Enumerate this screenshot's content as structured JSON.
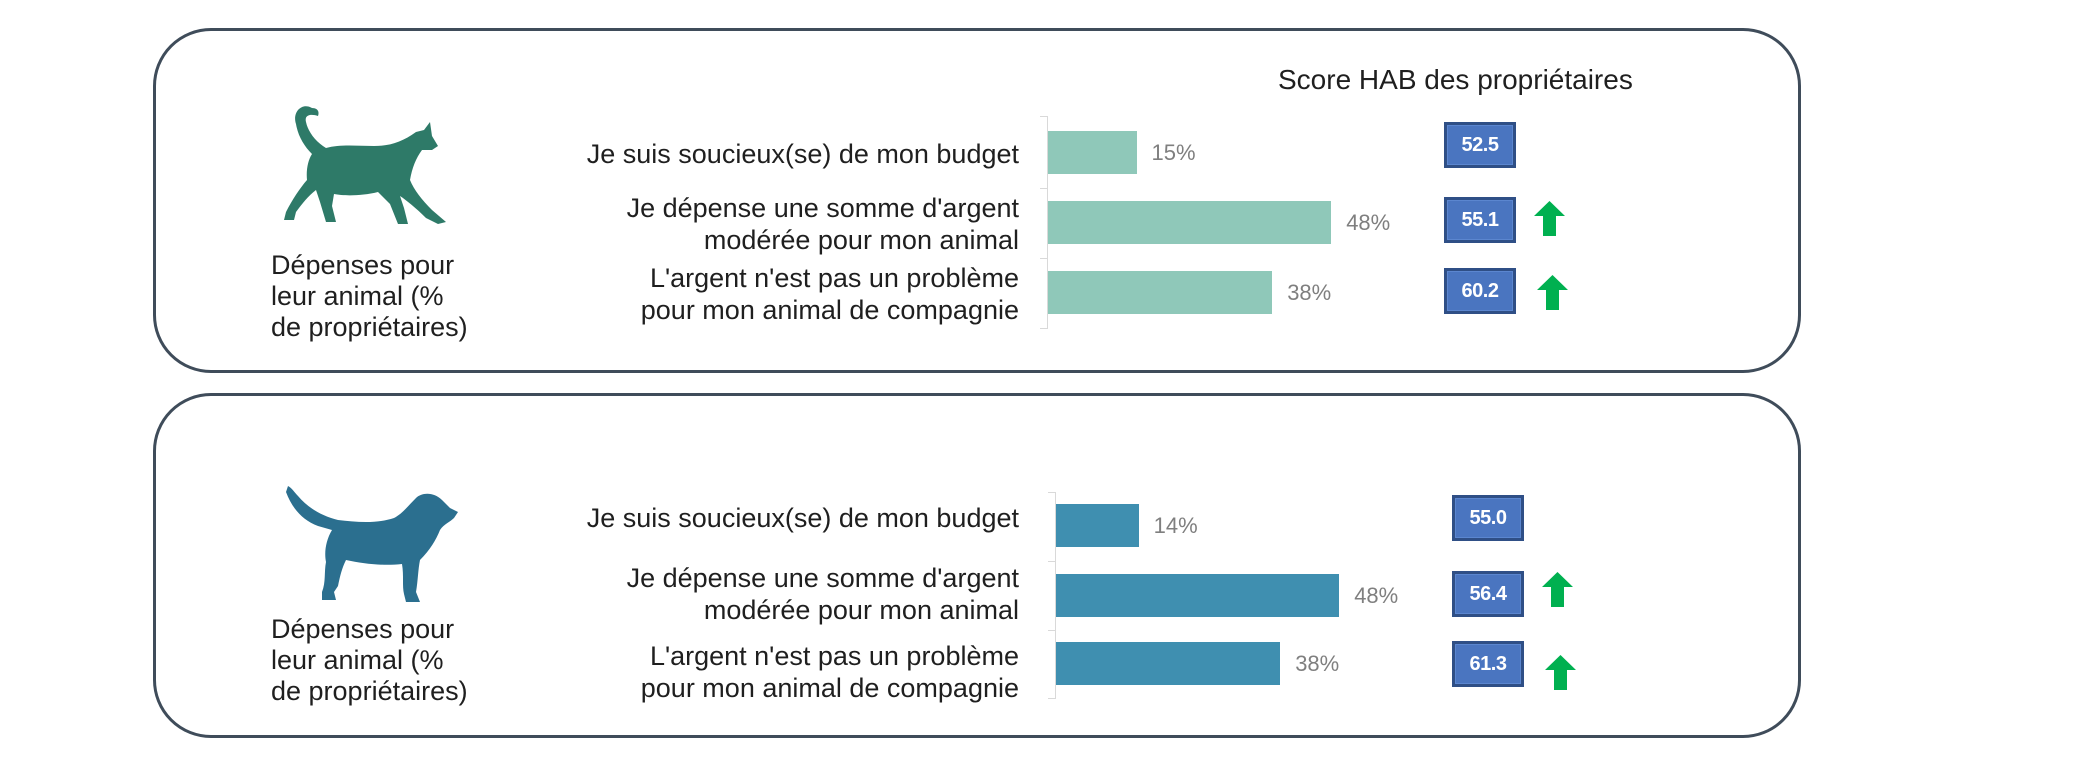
{
  "header": {
    "score_title": "Score HAB des propriétaires"
  },
  "colors": {
    "cat_bar": "#8fc8b9",
    "dog_bar": "#3f8fb0",
    "cat_icon": "#2e7a68",
    "dog_icon": "#2b6f8f",
    "score_fill": "#4a75c0",
    "arrow_up": "#00b050"
  },
  "panels": [
    {
      "animal": "cat",
      "icon": "cat-icon",
      "caption": [
        "Dépenses pour",
        "leur animal (%",
        "de propriétaires)"
      ],
      "rows": [
        {
          "label": [
            "Je suis soucieux(se) de mon budget"
          ],
          "value": 15,
          "value_label": "15%",
          "score": "52.5",
          "trend": "none"
        },
        {
          "label": [
            "Je dépense une somme d'argent",
            "modérée pour mon animal"
          ],
          "value": 48,
          "value_label": "48%",
          "score": "55.1",
          "trend": "up"
        },
        {
          "label": [
            "L'argent n'est pas un problème",
            "pour mon animal de compagnie"
          ],
          "value": 38,
          "value_label": "38%",
          "score": "60.2",
          "trend": "up"
        }
      ]
    },
    {
      "animal": "dog",
      "icon": "dog-icon",
      "caption": [
        "Dépenses pour",
        "leur animal (%",
        "de propriétaires)"
      ],
      "rows": [
        {
          "label": [
            "Je suis soucieux(se) de mon budget"
          ],
          "value": 14,
          "value_label": "14%",
          "score": "55.0",
          "trend": "none"
        },
        {
          "label": [
            "Je dépense une somme d'argent",
            "modérée pour mon animal"
          ],
          "value": 48,
          "value_label": "48%",
          "score": "56.4",
          "trend": "up"
        },
        {
          "label": [
            "L'argent n'est pas un problème",
            "pour mon animal de compagnie"
          ],
          "value": 38,
          "value_label": "38%",
          "score": "61.3",
          "trend": "up"
        }
      ]
    }
  ],
  "chart_data": [
    {
      "type": "bar",
      "orientation": "horizontal",
      "title": "Dépenses pour leur animal (% de propriétaires) — Chat",
      "categories": [
        "Je suis soucieux(se) de mon budget",
        "Je dépense une somme d'argent modérée pour mon animal",
        "L'argent n'est pas un problème pour mon animal de compagnie"
      ],
      "values": [
        15,
        48,
        38
      ],
      "unit": "%",
      "side_values_title": "Score HAB des propriétaires",
      "side_values": [
        52.5,
        55.1,
        60.2
      ],
      "side_trend": [
        "none",
        "up",
        "up"
      ],
      "xlabel": "",
      "ylabel": "",
      "grid": false
    },
    {
      "type": "bar",
      "orientation": "horizontal",
      "title": "Dépenses pour leur animal (% de propriétaires) — Chien",
      "categories": [
        "Je suis soucieux(se) de mon budget",
        "Je dépense une somme d'argent modérée pour mon animal",
        "L'argent n'est pas un problème pour mon animal de compagnie"
      ],
      "values": [
        14,
        48,
        38
      ],
      "unit": "%",
      "side_values_title": "Score HAB des propriétaires",
      "side_values": [
        55.0,
        56.4,
        61.3
      ],
      "side_trend": [
        "none",
        "up",
        "up"
      ],
      "xlabel": "",
      "ylabel": "",
      "grid": false
    }
  ]
}
